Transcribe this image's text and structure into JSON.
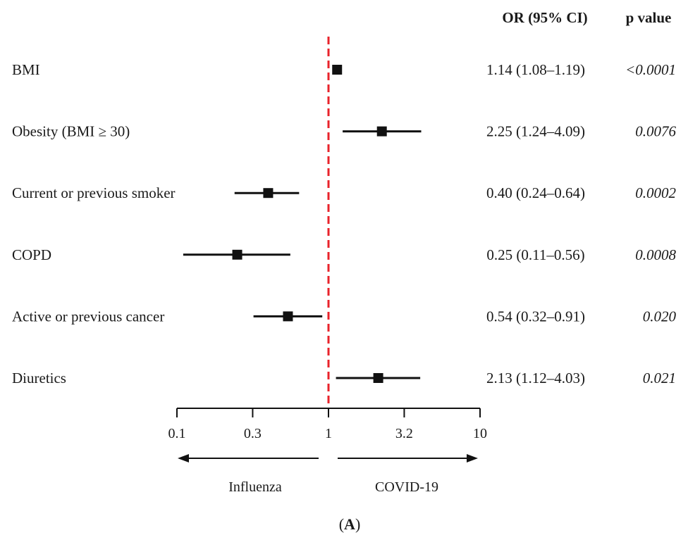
{
  "header": {
    "or_label": "OR (95% CI)",
    "p_label": "p value"
  },
  "chart_data": {
    "type": "forest",
    "x_scale": "log",
    "xlim": [
      0.1,
      10
    ],
    "reference_value": 1,
    "reference_line_color": "#e8232b",
    "marker_color": "#111111",
    "ticks": [
      {
        "value": 0.1,
        "label": "0.1"
      },
      {
        "value": 0.316,
        "label": "0.3"
      },
      {
        "value": 1,
        "label": "1"
      },
      {
        "value": 3.16,
        "label": "3.2"
      },
      {
        "value": 10,
        "label": "10"
      }
    ],
    "rows": [
      {
        "label": "BMI",
        "or": 1.14,
        "lo": 1.08,
        "hi": 1.19,
        "or_text": "1.14 (1.08–1.19)",
        "p": "<0.0001"
      },
      {
        "label": "Obesity (BMI ≥ 30)",
        "or": 2.25,
        "lo": 1.24,
        "hi": 4.09,
        "or_text": "2.25 (1.24–4.09)",
        "p": "0.0076"
      },
      {
        "label": "Current or previous smoker",
        "or": 0.4,
        "lo": 0.24,
        "hi": 0.64,
        "or_text": "0.40 (0.24–0.64)",
        "p": "0.0002"
      },
      {
        "label": "COPD",
        "or": 0.25,
        "lo": 0.11,
        "hi": 0.56,
        "or_text": "0.25 (0.11–0.56)",
        "p": "0.0008"
      },
      {
        "label": "Active or previous cancer",
        "or": 0.54,
        "lo": 0.32,
        "hi": 0.91,
        "or_text": "0.54 (0.32–0.91)",
        "p": "0.020"
      },
      {
        "label": "Diuretics",
        "or": 2.13,
        "lo": 1.12,
        "hi": 4.03,
        "or_text": "2.13 (1.12–4.03)",
        "p": "0.021"
      }
    ],
    "direction_left": "Influenza",
    "direction_right": "COVID-19",
    "panel_label": "A"
  }
}
